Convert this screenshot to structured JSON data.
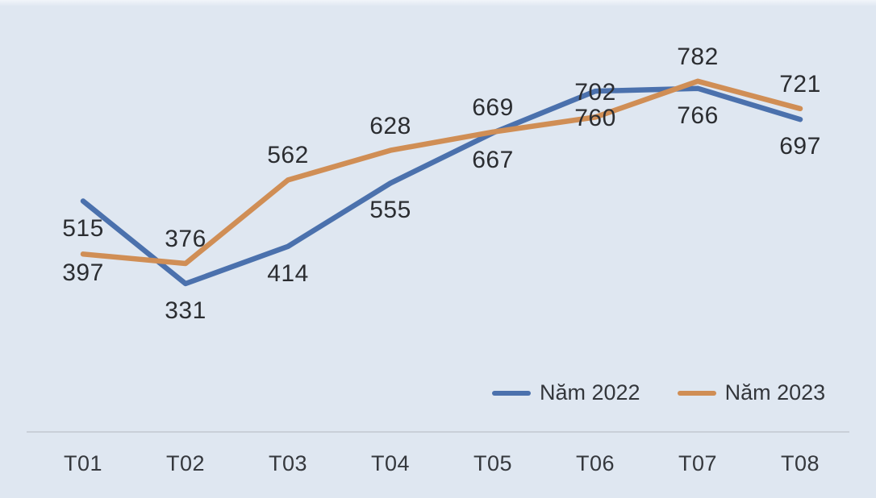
{
  "chart_data": {
    "type": "line",
    "title": "",
    "categories": [
      "T01",
      "T02",
      "T03",
      "T04",
      "T05",
      "T06",
      "T07",
      "T08"
    ],
    "series": [
      {
        "name": "Năm 2022",
        "color": "#4b71ad",
        "values": [
          515,
          331,
          414,
          555,
          667,
          760,
          766,
          697
        ],
        "label_side": "below"
      },
      {
        "name": "Năm 2023",
        "color": "#d08e55",
        "values": [
          397,
          376,
          562,
          628,
          669,
          702,
          782,
          721
        ],
        "label_side": "above",
        "label_side_overrides": {
          "0": "below"
        }
      }
    ],
    "xlabel": "",
    "ylabel": "",
    "ylim": [
      300,
      820
    ],
    "y_axis_visible": false,
    "grid": false,
    "data_labels_visible": true,
    "legend_position": "bottom-right"
  },
  "style": {
    "background_color": "#dfe7f1",
    "axis_line_color": "#c9cfd8",
    "label_text_color": "#2b2d31"
  }
}
